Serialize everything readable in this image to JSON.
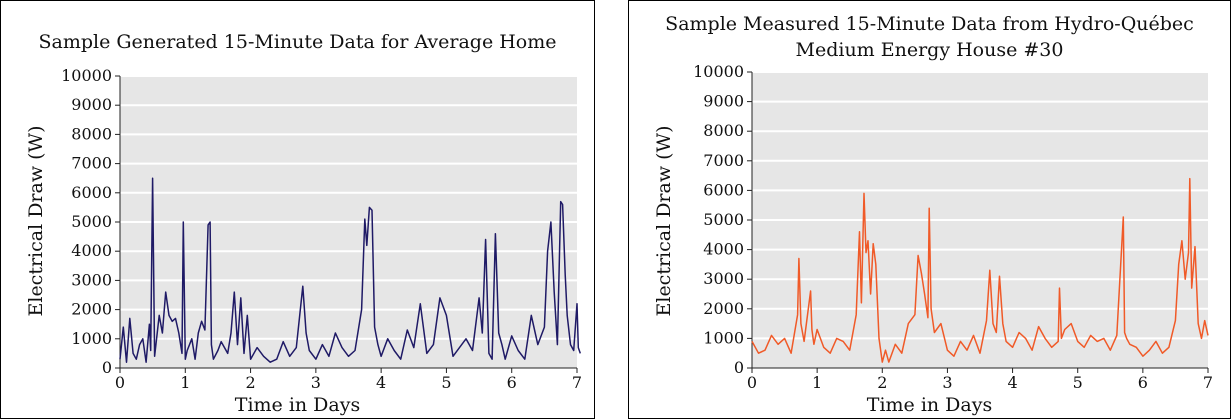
{
  "chart_data": [
    {
      "type": "line",
      "title": "Sample Generated 15-Minute Data for Average Home",
      "xlabel": "Time in Days",
      "ylabel": "Electrical Draw (W)",
      "xlim": [
        0,
        7
      ],
      "ylim": [
        0,
        10000
      ],
      "xticks": [
        0,
        1,
        2,
        3,
        4,
        5,
        6,
        7
      ],
      "yticks": [
        0,
        1000,
        2000,
        3000,
        4000,
        5000,
        6000,
        7000,
        8000,
        9000,
        10000
      ],
      "grid": true,
      "color": "#1f1a66",
      "series": [
        {
          "x": [
            0,
            0.05,
            0.1,
            0.15,
            0.2,
            0.25,
            0.3,
            0.35,
            0.4,
            0.45,
            0.47,
            0.5,
            0.53,
            0.6,
            0.65,
            0.7,
            0.75,
            0.8,
            0.85,
            0.9,
            0.95,
            0.97,
            1.0,
            1.03,
            1.1,
            1.15,
            1.2,
            1.25,
            1.3,
            1.35,
            1.38,
            1.4,
            1.43,
            1.5,
            1.55,
            1.6,
            1.65,
            1.7,
            1.75,
            1.8,
            1.85,
            1.9,
            1.95,
            2.0,
            2.1,
            2.2,
            2.3,
            2.4,
            2.5,
            2.6,
            2.7,
            2.8,
            2.85,
            2.9,
            3.0,
            3.1,
            3.2,
            3.3,
            3.4,
            3.5,
            3.6,
            3.7,
            3.75,
            3.78,
            3.82,
            3.86,
            3.9,
            3.95,
            4.0,
            4.1,
            4.2,
            4.3,
            4.4,
            4.5,
            4.6,
            4.7,
            4.8,
            4.9,
            5.0,
            5.1,
            5.2,
            5.3,
            5.4,
            5.5,
            5.55,
            5.6,
            5.65,
            5.7,
            5.75,
            5.8,
            5.85,
            5.9,
            6.0,
            6.1,
            6.2,
            6.3,
            6.4,
            6.5,
            6.55,
            6.6,
            6.65,
            6.7,
            6.75,
            6.78,
            6.82,
            6.85,
            6.9,
            6.95,
            7.0,
            7.02,
            7.05
          ],
          "y": [
            300,
            1400,
            200,
            1700,
            500,
            300,
            800,
            1000,
            200,
            1500,
            600,
            6500,
            400,
            1800,
            1200,
            2600,
            1800,
            1600,
            1700,
            1200,
            500,
            5000,
            300,
            600,
            1000,
            300,
            1200,
            1600,
            1300,
            4900,
            5000,
            800,
            300,
            600,
            900,
            700,
            500,
            1200,
            2600,
            800,
            2400,
            500,
            1800,
            300,
            700,
            400,
            200,
            300,
            900,
            400,
            700,
            2800,
            1200,
            600,
            300,
            800,
            400,
            1200,
            700,
            400,
            600,
            2000,
            5100,
            4200,
            5500,
            5400,
            1400,
            800,
            400,
            1000,
            600,
            300,
            1300,
            700,
            2200,
            500,
            800,
            2400,
            1800,
            400,
            700,
            1000,
            600,
            2400,
            1200,
            4400,
            500,
            300,
            4600,
            1200,
            800,
            300,
            1100,
            600,
            300,
            1800,
            800,
            1400,
            4000,
            5000,
            2600,
            800,
            5700,
            5600,
            3200,
            1800,
            800,
            600,
            2200,
            700,
            500
          ]
        }
      ]
    },
    {
      "type": "line",
      "title": "Sample Measured 15-Minute Data from Hydro-Québec",
      "subtitle": "Medium Energy House #30",
      "xlabel": "Time in Days",
      "ylabel": "Electrical Draw (W)",
      "xlim": [
        0,
        7
      ],
      "ylim": [
        0,
        10000
      ],
      "xticks": [
        0,
        1,
        2,
        3,
        4,
        5,
        6,
        7
      ],
      "yticks": [
        0,
        1000,
        2000,
        3000,
        4000,
        5000,
        6000,
        7000,
        8000,
        9000,
        10000
      ],
      "grid": true,
      "color": "#f05a28",
      "series": [
        {
          "x": [
            0,
            0.1,
            0.2,
            0.3,
            0.4,
            0.5,
            0.6,
            0.7,
            0.72,
            0.75,
            0.8,
            0.9,
            0.92,
            0.95,
            1.0,
            1.1,
            1.2,
            1.3,
            1.4,
            1.5,
            1.6,
            1.65,
            1.68,
            1.72,
            1.75,
            1.78,
            1.82,
            1.86,
            1.9,
            1.95,
            2.0,
            2.05,
            2.1,
            2.2,
            2.3,
            2.4,
            2.5,
            2.55,
            2.6,
            2.65,
            2.7,
            2.72,
            2.75,
            2.8,
            2.9,
            3.0,
            3.1,
            3.2,
            3.3,
            3.4,
            3.5,
            3.6,
            3.65,
            3.7,
            3.75,
            3.8,
            3.85,
            3.9,
            4.0,
            4.1,
            4.2,
            4.3,
            4.4,
            4.5,
            4.6,
            4.7,
            4.72,
            4.75,
            4.8,
            4.9,
            5.0,
            5.1,
            5.2,
            5.3,
            5.4,
            5.5,
            5.6,
            5.7,
            5.72,
            5.75,
            5.8,
            5.9,
            6.0,
            6.1,
            6.2,
            6.3,
            6.4,
            6.5,
            6.55,
            6.6,
            6.65,
            6.7,
            6.72,
            6.75,
            6.8,
            6.85,
            6.9,
            6.95,
            7.0
          ],
          "y": [
            900,
            500,
            600,
            1100,
            800,
            1000,
            500,
            1800,
            3700,
            1500,
            900,
            2600,
            1300,
            800,
            1300,
            700,
            500,
            1000,
            900,
            600,
            1800,
            4600,
            2200,
            5900,
            3900,
            4300,
            2500,
            4200,
            3500,
            1000,
            200,
            600,
            200,
            800,
            500,
            1500,
            1800,
            3800,
            3200,
            2500,
            1700,
            5400,
            2000,
            1200,
            1500,
            600,
            400,
            900,
            600,
            1100,
            500,
            1600,
            3300,
            1500,
            1200,
            3100,
            1500,
            900,
            700,
            1200,
            1000,
            600,
            1400,
            1000,
            700,
            900,
            2700,
            1000,
            1300,
            1500,
            900,
            700,
            1100,
            900,
            1000,
            600,
            1100,
            5100,
            1200,
            1000,
            800,
            700,
            400,
            600,
            900,
            500,
            700,
            1600,
            3500,
            4300,
            3000,
            3900,
            6400,
            2700,
            4100,
            1500,
            1000,
            1600,
            1100
          ]
        }
      ]
    }
  ]
}
